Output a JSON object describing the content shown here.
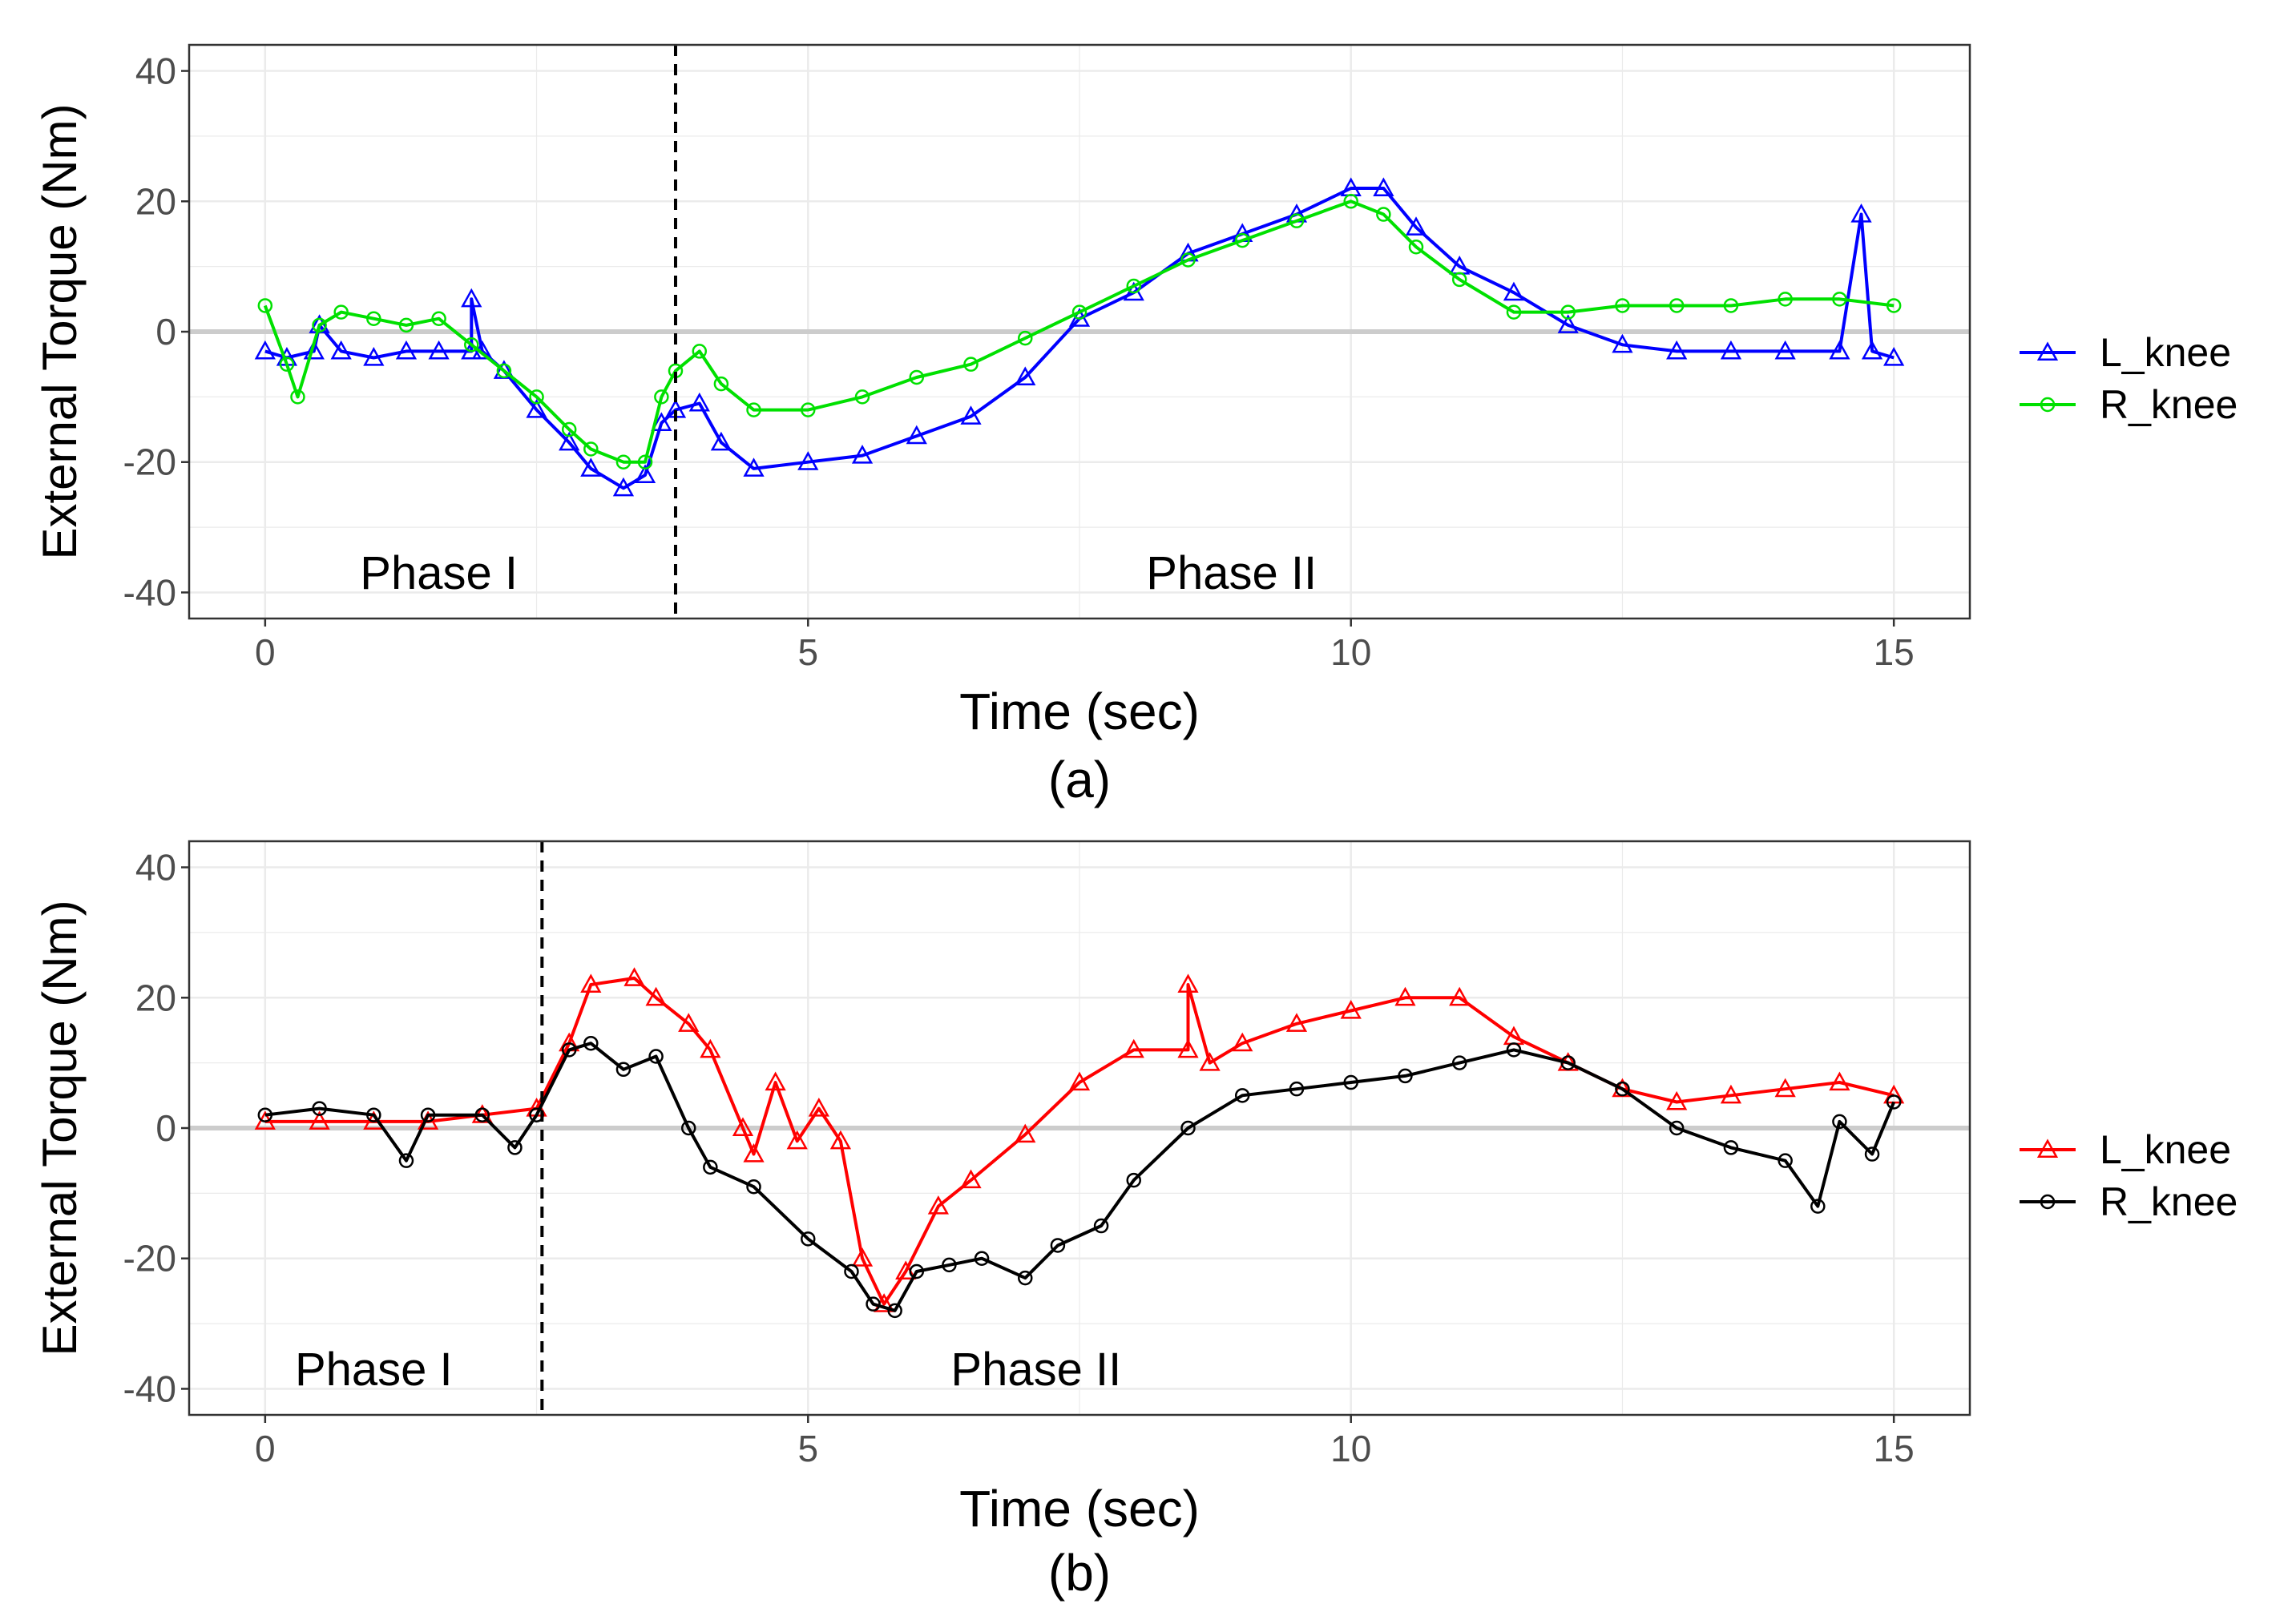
{
  "chart_data": [
    {
      "type": "line",
      "caption": "(a)",
      "xlabel": "Time (sec)",
      "ylabel": "External Torque (Nm)",
      "xlim": [
        -0.7,
        15.7
      ],
      "ylim": [
        -44,
        44
      ],
      "xticks": [
        0,
        5,
        10,
        15
      ],
      "yticks": [
        -40,
        -20,
        0,
        20,
        40
      ],
      "grid": true,
      "zero_line": 0,
      "phase_split": 3.78,
      "phase_labels": [
        {
          "text": "Phase I",
          "x": 1.6,
          "y": -37
        },
        {
          "text": "Phase II",
          "x": 8.9,
          "y": -37
        }
      ],
      "legend_position": "right",
      "series": [
        {
          "name": "L_knee",
          "color": "#0000ff",
          "marker": "triangle",
          "points": [
            [
              0,
              -3
            ],
            [
              0.2,
              -4
            ],
            [
              0.45,
              -3
            ],
            [
              0.5,
              1
            ],
            [
              0.7,
              -3
            ],
            [
              1.0,
              -4
            ],
            [
              1.3,
              -3
            ],
            [
              1.6,
              -3
            ],
            [
              1.9,
              -3
            ],
            [
              1.9,
              5
            ],
            [
              2.0,
              -3
            ],
            [
              2.2,
              -6
            ],
            [
              2.5,
              -12
            ],
            [
              2.8,
              -17
            ],
            [
              3.0,
              -21
            ],
            [
              3.3,
              -24
            ],
            [
              3.5,
              -22
            ],
            [
              3.65,
              -14
            ],
            [
              3.78,
              -12
            ],
            [
              4.0,
              -11
            ],
            [
              4.2,
              -17
            ],
            [
              4.5,
              -21
            ],
            [
              5.0,
              -20
            ],
            [
              5.5,
              -19
            ],
            [
              6.0,
              -16
            ],
            [
              6.5,
              -13
            ],
            [
              7.0,
              -7
            ],
            [
              7.5,
              2
            ],
            [
              8.0,
              6
            ],
            [
              8.5,
              12
            ],
            [
              9.0,
              15
            ],
            [
              9.5,
              18
            ],
            [
              10.0,
              22
            ],
            [
              10.3,
              22
            ],
            [
              10.6,
              16
            ],
            [
              11.0,
              10
            ],
            [
              11.5,
              6
            ],
            [
              12.0,
              1
            ],
            [
              12.5,
              -2
            ],
            [
              13.0,
              -3
            ],
            [
              13.5,
              -3
            ],
            [
              14.0,
              -3
            ],
            [
              14.5,
              -3
            ],
            [
              14.7,
              18
            ],
            [
              14.8,
              -3
            ],
            [
              15.0,
              -4
            ]
          ]
        },
        {
          "name": "R_knee",
          "color": "#00e000",
          "marker": "circle",
          "points": [
            [
              0,
              4
            ],
            [
              0.2,
              -5
            ],
            [
              0.3,
              -10
            ],
            [
              0.5,
              1
            ],
            [
              0.7,
              3
            ],
            [
              1.0,
              2
            ],
            [
              1.3,
              1
            ],
            [
              1.6,
              2
            ],
            [
              1.9,
              -2
            ],
            [
              2.2,
              -6
            ],
            [
              2.5,
              -10
            ],
            [
              2.8,
              -15
            ],
            [
              3.0,
              -18
            ],
            [
              3.3,
              -20
            ],
            [
              3.5,
              -20
            ],
            [
              3.65,
              -10
            ],
            [
              3.78,
              -6
            ],
            [
              4.0,
              -3
            ],
            [
              4.2,
              -8
            ],
            [
              4.5,
              -12
            ],
            [
              5.0,
              -12
            ],
            [
              5.5,
              -10
            ],
            [
              6.0,
              -7
            ],
            [
              6.5,
              -5
            ],
            [
              7.0,
              -1
            ],
            [
              7.5,
              3
            ],
            [
              8.0,
              7
            ],
            [
              8.5,
              11
            ],
            [
              9.0,
              14
            ],
            [
              9.5,
              17
            ],
            [
              10.0,
              20
            ],
            [
              10.3,
              18
            ],
            [
              10.6,
              13
            ],
            [
              11.0,
              8
            ],
            [
              11.5,
              3
            ],
            [
              12.0,
              3
            ],
            [
              12.5,
              4
            ],
            [
              13.0,
              4
            ],
            [
              13.5,
              4
            ],
            [
              14.0,
              5
            ],
            [
              14.5,
              5
            ],
            [
              15.0,
              4
            ]
          ]
        }
      ]
    },
    {
      "type": "line",
      "caption": "(b)",
      "xlabel": "Time (sec)",
      "ylabel": "External Torque (Nm)",
      "xlim": [
        -0.7,
        15.7
      ],
      "ylim": [
        -44,
        44
      ],
      "xticks": [
        0,
        5,
        10,
        15
      ],
      "yticks": [
        -40,
        -20,
        0,
        20,
        40
      ],
      "grid": true,
      "zero_line": 0,
      "phase_split": 2.55,
      "phase_labels": [
        {
          "text": "Phase I",
          "x": 1.0,
          "y": -37
        },
        {
          "text": "Phase II",
          "x": 7.1,
          "y": -37
        }
      ],
      "legend_position": "right",
      "series": [
        {
          "name": "L_knee",
          "color": "#ff0000",
          "marker": "triangle",
          "points": [
            [
              0,
              1
            ],
            [
              0.5,
              1
            ],
            [
              1.0,
              1
            ],
            [
              1.5,
              1
            ],
            [
              2.0,
              2
            ],
            [
              2.5,
              3
            ],
            [
              2.8,
              13
            ],
            [
              3.0,
              22
            ],
            [
              3.4,
              23
            ],
            [
              3.6,
              20
            ],
            [
              3.9,
              16
            ],
            [
              4.1,
              12
            ],
            [
              4.4,
              0
            ],
            [
              4.5,
              -4
            ],
            [
              4.7,
              7
            ],
            [
              4.9,
              -2
            ],
            [
              5.1,
              3
            ],
            [
              5.3,
              -2
            ],
            [
              5.5,
              -20
            ],
            [
              5.7,
              -27
            ],
            [
              5.9,
              -22
            ],
            [
              6.2,
              -12
            ],
            [
              6.5,
              -8
            ],
            [
              7.0,
              -1
            ],
            [
              7.5,
              7
            ],
            [
              8.0,
              12
            ],
            [
              8.5,
              12
            ],
            [
              8.5,
              22
            ],
            [
              8.7,
              10
            ],
            [
              9.0,
              13
            ],
            [
              9.5,
              16
            ],
            [
              10.0,
              18
            ],
            [
              10.5,
              20
            ],
            [
              11.0,
              20
            ],
            [
              11.5,
              14
            ],
            [
              12.0,
              10
            ],
            [
              12.5,
              6
            ],
            [
              13.0,
              4
            ],
            [
              13.5,
              5
            ],
            [
              14.0,
              6
            ],
            [
              14.5,
              7
            ],
            [
              15.0,
              5
            ]
          ]
        },
        {
          "name": "R_knee",
          "color": "#000000",
          "marker": "circle",
          "points": [
            [
              0,
              2
            ],
            [
              0.5,
              3
            ],
            [
              1.0,
              2
            ],
            [
              1.3,
              -5
            ],
            [
              1.5,
              2
            ],
            [
              2.0,
              2
            ],
            [
              2.3,
              -3
            ],
            [
              2.5,
              2
            ],
            [
              2.8,
              12
            ],
            [
              3.0,
              13
            ],
            [
              3.3,
              9
            ],
            [
              3.6,
              11
            ],
            [
              3.9,
              0
            ],
            [
              4.1,
              -6
            ],
            [
              4.5,
              -9
            ],
            [
              5.0,
              -17
            ],
            [
              5.4,
              -22
            ],
            [
              5.6,
              -27
            ],
            [
              5.8,
              -28
            ],
            [
              6.0,
              -22
            ],
            [
              6.3,
              -21
            ],
            [
              6.6,
              -20
            ],
            [
              7.0,
              -23
            ],
            [
              7.3,
              -18
            ],
            [
              7.7,
              -15
            ],
            [
              8.0,
              -8
            ],
            [
              8.5,
              0
            ],
            [
              9.0,
              5
            ],
            [
              9.5,
              6
            ],
            [
              10.0,
              7
            ],
            [
              10.5,
              8
            ],
            [
              11.0,
              10
            ],
            [
              11.5,
              12
            ],
            [
              12.0,
              10
            ],
            [
              12.5,
              6
            ],
            [
              13.0,
              0
            ],
            [
              13.5,
              -3
            ],
            [
              14.0,
              -5
            ],
            [
              14.3,
              -12
            ],
            [
              14.5,
              1
            ],
            [
              14.8,
              -4
            ],
            [
              15.0,
              4
            ]
          ]
        }
      ]
    }
  ]
}
